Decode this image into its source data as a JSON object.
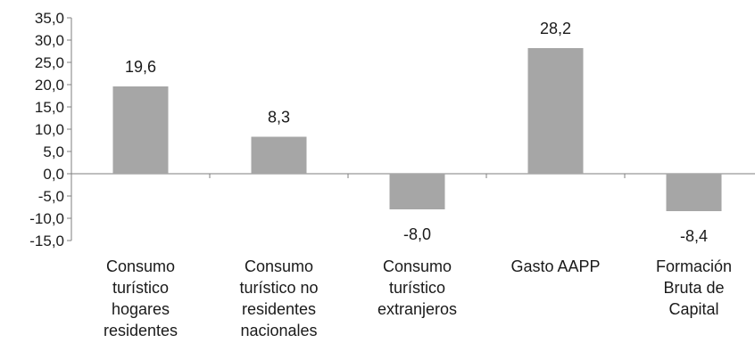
{
  "chart_data": {
    "type": "bar",
    "categories": [
      "Consumo turístico hogares residentes",
      "Consumo turístico no residentes nacionales",
      "Consumo turístico extranjeros",
      "Gasto AAPP",
      "Formación Bruta de Capital"
    ],
    "category_lines": [
      [
        "Consumo",
        "turístico",
        "hogares",
        "residentes"
      ],
      [
        "Consumo",
        "turístico no",
        "residentes",
        "nacionales"
      ],
      [
        "Consumo",
        "turístico",
        "extranjeros"
      ],
      [
        "Gasto AAPP"
      ],
      [
        "Formación",
        "Bruta de",
        "Capital"
      ]
    ],
    "values": [
      19.6,
      8.3,
      -8.0,
      28.2,
      -8.4
    ],
    "value_labels": [
      "19,6",
      "8,3",
      "-8,0",
      "28,2",
      "-8,4"
    ],
    "ylim": [
      -15,
      35
    ],
    "yticks": [
      35,
      30,
      25,
      20,
      15,
      10,
      5,
      0,
      -5,
      -10,
      -15
    ],
    "ytick_labels": [
      "35,0",
      "30,0",
      "25,0",
      "20,0",
      "15,0",
      "10,0",
      "5,0",
      "0,0",
      "-5,0",
      "-10,0",
      "-15,0"
    ],
    "bar_color": "#a6a6a6",
    "axis_color": "#7f7f7f",
    "title": "",
    "xlabel": "",
    "ylabel": "",
    "grid": false,
    "legend": "none"
  }
}
